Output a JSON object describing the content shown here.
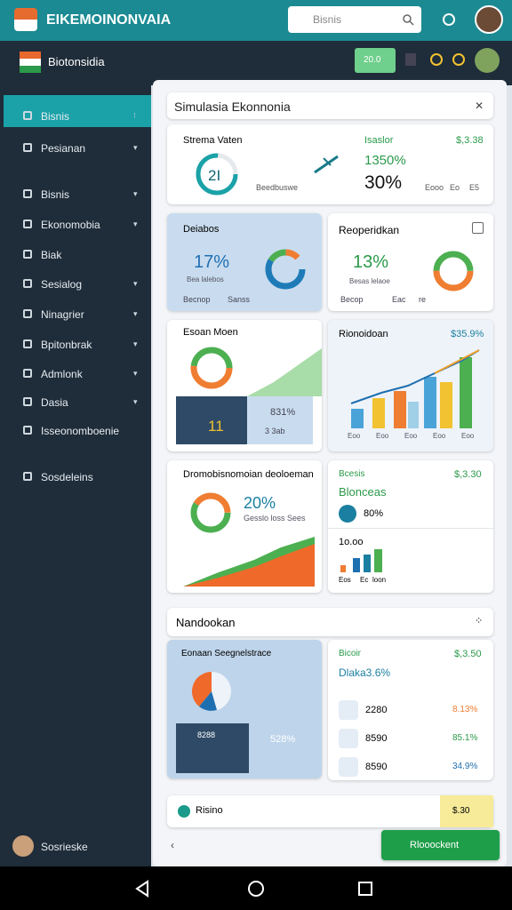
{
  "header": {
    "app_title": "EIKEMOINONVAIA",
    "search_placeholder": "Bisnis"
  },
  "subheader": {
    "title": "Biotonsidia",
    "badge": "20.0"
  },
  "sidebar": {
    "items": [
      "Bisnis",
      "Pesianan",
      "Bisnis",
      "Ekonomobia",
      "Biak",
      "Sesialog",
      "Ninagrier",
      "Bpitonbrak",
      "Admlonk",
      "Dasia",
      "Isseonomboenie",
      "Sosdeleins"
    ],
    "user": "Sosrieske"
  },
  "panel": {
    "title": "Simulasia Ekonnonia"
  },
  "cards": {
    "summary": {
      "title": "Strema Vaten",
      "donut": "2I",
      "caption": "Beedbuswe",
      "label": "Isaslor",
      "amount": "$,3.38",
      "rate": "1350%",
      "share": "30%",
      "foot": [
        "Eooo",
        "Eo",
        "E5"
      ]
    },
    "deiabos": {
      "title": "Deiabos",
      "value": "17%",
      "sub": "Bea lalebos",
      "foot": [
        "Becnop",
        "Sanss"
      ]
    },
    "reoperidkan": {
      "title": "Reoperidkan",
      "value": "13%",
      "sub": "Besas lelaoe",
      "foot": [
        "Becop",
        "Eac",
        "re"
      ]
    },
    "esoan": {
      "title": "Esoan Moen",
      "value": "11",
      "rate": "831%",
      "sub": "3 3ab"
    },
    "rionoidoan": {
      "title": "Rionoidoan",
      "amount": "$35.9%",
      "axis": [
        "Eoo",
        "Eoo",
        "Eoo",
        "Eoo",
        "Eoo"
      ]
    },
    "dromo": {
      "title": "Dromobisnomoian deoloeman",
      "value": "20%",
      "sub": "Gesslo loss Sees"
    },
    "bcesis": {
      "title": "Bcesis",
      "amount": "$,3.30",
      "sub": "Blonceas",
      "rate": "80%",
      "count": "1o.oo",
      "foot": [
        "Eos",
        "Ec",
        "loon"
      ]
    }
  },
  "section": {
    "title": "Nandookan"
  },
  "lower": {
    "eonaan": {
      "title": "Eonaan Seegnelstrace",
      "value": "8288",
      "rate": "528%"
    },
    "bicoir": {
      "title": "Bicoir",
      "amount": "$,3.50",
      "sub": "Dlaka3.6%",
      "rows": [
        [
          "2280",
          "8.13%"
        ],
        [
          "8590",
          "85.1%"
        ],
        [
          "8590",
          "34.9%"
        ]
      ]
    }
  },
  "footer": {
    "label": "Risino",
    "tag": "$.30",
    "button": "Rlooockent"
  }
}
